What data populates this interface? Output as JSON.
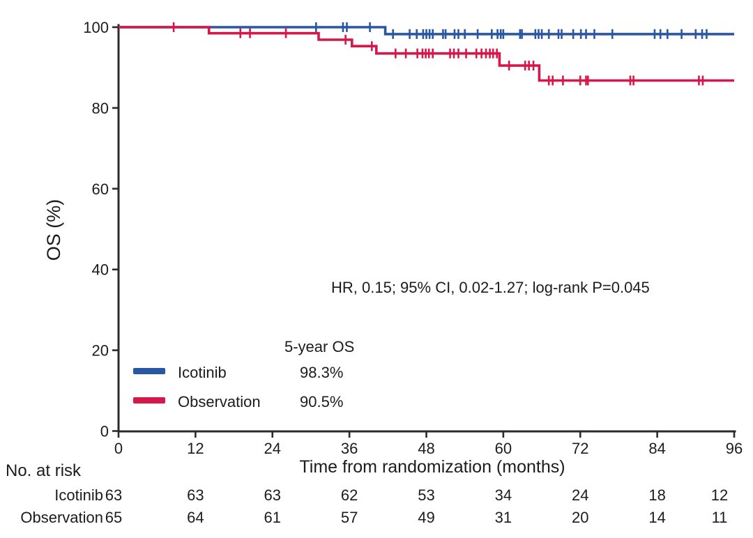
{
  "chart_data": {
    "type": "line",
    "subtype": "kaplan-meier-step",
    "title": "",
    "xlabel": "Time from randomization (months)",
    "ylabel": "OS (%)",
    "xlim": [
      0,
      96
    ],
    "ylim": [
      0,
      100
    ],
    "xticks": [
      0,
      12,
      24,
      36,
      48,
      60,
      72,
      84,
      96
    ],
    "yticks": [
      0,
      20,
      40,
      60,
      80,
      100
    ],
    "grid": false,
    "annotation": "HR, 0.15; 95% CI, 0.02-1.27; log-rank P=0.045",
    "legend": {
      "position": "lower-left-inside",
      "header": "5-year OS",
      "entries": [
        {
          "name": "Icotinib",
          "value": "98.3%",
          "color": "#2a57a5"
        },
        {
          "name": "Observation",
          "value": "90.5%",
          "color": "#d5174a"
        }
      ]
    },
    "series": [
      {
        "name": "Icotinib",
        "color": "#2a57a5",
        "steps": [
          [
            0,
            100
          ],
          [
            41.6,
            100
          ],
          [
            41.6,
            98.3
          ],
          [
            96,
            98.3
          ]
        ],
        "censors": [
          [
            30.8,
            100
          ],
          [
            35.0,
            100
          ],
          [
            35.6,
            100
          ],
          [
            39.2,
            100
          ],
          [
            42.8,
            98.3
          ],
          [
            45.4,
            98.3
          ],
          [
            46.5,
            98.3
          ],
          [
            47.5,
            98.3
          ],
          [
            48.0,
            98.3
          ],
          [
            48.5,
            98.3
          ],
          [
            49.0,
            98.3
          ],
          [
            50.6,
            98.3
          ],
          [
            51.0,
            98.3
          ],
          [
            52.4,
            98.3
          ],
          [
            53.0,
            98.3
          ],
          [
            54.0,
            98.3
          ],
          [
            56.0,
            98.3
          ],
          [
            58.2,
            98.3
          ],
          [
            59.1,
            98.3
          ],
          [
            59.6,
            98.3
          ],
          [
            60.0,
            98.3
          ],
          [
            62.6,
            98.3
          ],
          [
            62.9,
            98.3
          ],
          [
            65.0,
            98.3
          ],
          [
            65.5,
            98.3
          ],
          [
            66.0,
            98.3
          ],
          [
            67.1,
            98.3
          ],
          [
            68.6,
            98.3
          ],
          [
            69.1,
            98.3
          ],
          [
            70.9,
            98.3
          ],
          [
            72.1,
            98.3
          ],
          [
            72.9,
            98.3
          ],
          [
            74.2,
            98.3
          ],
          [
            77.0,
            98.3
          ],
          [
            83.6,
            98.3
          ],
          [
            84.5,
            98.3
          ],
          [
            85.6,
            98.3
          ],
          [
            87.8,
            98.3
          ],
          [
            90.0,
            98.3
          ],
          [
            91.0,
            98.3
          ],
          [
            91.7,
            98.3
          ]
        ]
      },
      {
        "name": "Observation",
        "color": "#d5174a",
        "steps": [
          [
            0,
            100
          ],
          [
            14.1,
            100
          ],
          [
            14.1,
            98.5
          ],
          [
            31.2,
            98.5
          ],
          [
            31.2,
            96.9
          ],
          [
            36.4,
            96.9
          ],
          [
            36.4,
            95.3
          ],
          [
            40.2,
            95.3
          ],
          [
            40.2,
            93.5
          ],
          [
            59.4,
            93.5
          ],
          [
            59.4,
            90.5
          ],
          [
            65.6,
            90.5
          ],
          [
            65.6,
            86.8
          ],
          [
            96,
            86.8
          ]
        ],
        "censors": [
          [
            8.6,
            100
          ],
          [
            19.0,
            98.5
          ],
          [
            20.5,
            98.5
          ],
          [
            26.1,
            98.5
          ],
          [
            35.4,
            96.9
          ],
          [
            39.5,
            95.3
          ],
          [
            43.2,
            93.5
          ],
          [
            44.8,
            93.5
          ],
          [
            46.6,
            93.5
          ],
          [
            47.4,
            93.5
          ],
          [
            47.9,
            93.5
          ],
          [
            48.4,
            93.5
          ],
          [
            49.0,
            93.5
          ],
          [
            51.7,
            93.5
          ],
          [
            52.3,
            93.5
          ],
          [
            53.0,
            93.5
          ],
          [
            54.2,
            93.5
          ],
          [
            55.8,
            93.5
          ],
          [
            56.6,
            93.5
          ],
          [
            57.3,
            93.5
          ],
          [
            57.9,
            93.5
          ],
          [
            58.4,
            93.5
          ],
          [
            59.0,
            93.5
          ],
          [
            60.9,
            90.5
          ],
          [
            63.4,
            90.5
          ],
          [
            64.0,
            90.5
          ],
          [
            64.7,
            90.5
          ],
          [
            67.1,
            86.8
          ],
          [
            67.7,
            86.8
          ],
          [
            69.3,
            86.8
          ],
          [
            72.0,
            86.8
          ],
          [
            72.9,
            86.8
          ],
          [
            73.2,
            86.8
          ],
          [
            79.8,
            86.8
          ],
          [
            80.3,
            86.8
          ],
          [
            90.5,
            86.8
          ],
          [
            91.1,
            86.8
          ]
        ]
      }
    ],
    "risk_table": {
      "title": "No. at risk",
      "times": [
        0,
        12,
        24,
        36,
        48,
        60,
        72,
        84,
        96
      ],
      "rows": [
        {
          "name": "Icotinib",
          "counts": [
            63,
            63,
            63,
            62,
            53,
            34,
            24,
            18,
            12
          ]
        },
        {
          "name": "Observation",
          "counts": [
            65,
            64,
            61,
            57,
            49,
            31,
            20,
            14,
            11
          ]
        }
      ]
    }
  }
}
